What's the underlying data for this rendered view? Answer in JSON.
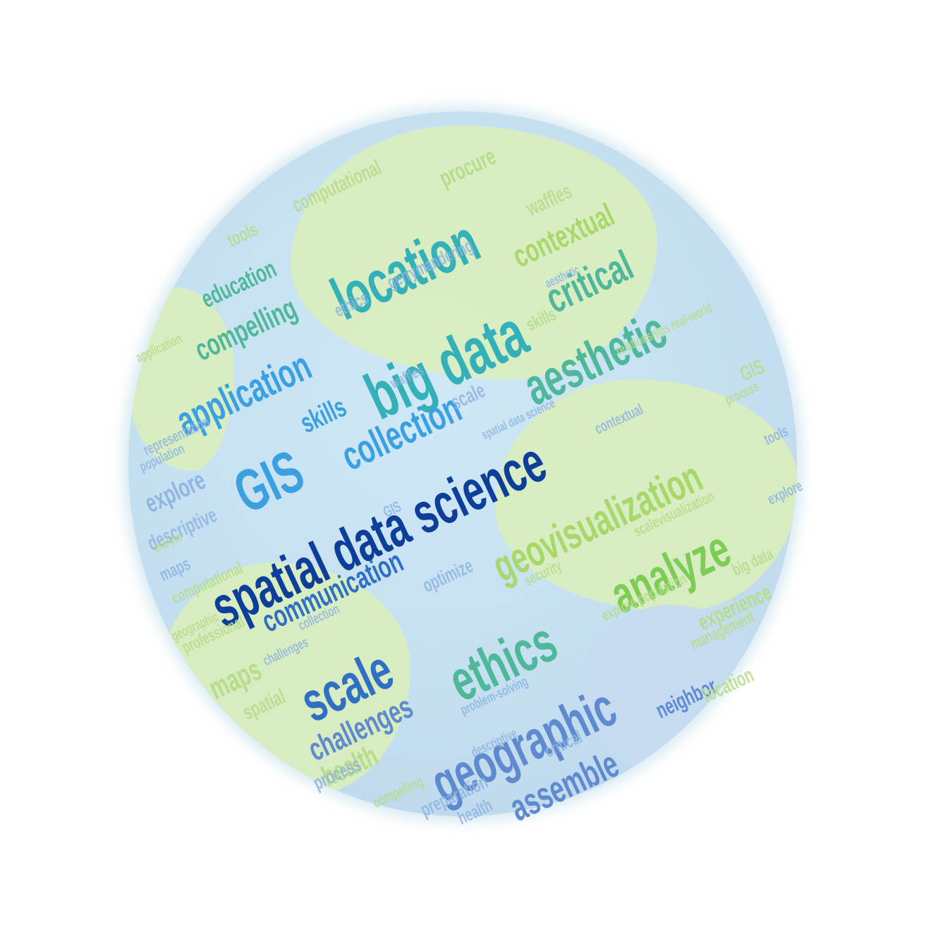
{
  "palette": {
    "navy": "#0d3f9a",
    "blue": "#2f6fc4",
    "sky": "#3aa0e0",
    "teal": "#33b0b8",
    "seagreen": "#4fb89a",
    "green": "#7ccc55",
    "lime": "#a8d86a",
    "pale_green": "#b7dc8a",
    "pale_blue": "#8fb5e0",
    "periwinkle": "#5f8ad0"
  },
  "words": [
    {
      "text": "spatial data science",
      "color": "navy"
    },
    {
      "text": "big data",
      "color": "teal"
    },
    {
      "text": "location",
      "color": "teal"
    },
    {
      "text": "aesthetic",
      "color": "seagreen"
    },
    {
      "text": "critical",
      "color": "seagreen"
    },
    {
      "text": "contextual",
      "color": "lime"
    },
    {
      "text": "GIS",
      "color": "sky"
    },
    {
      "text": "application",
      "color": "sky"
    },
    {
      "text": "collection",
      "color": "sky"
    },
    {
      "text": "skills",
      "color": "sky"
    },
    {
      "text": "geovisualization",
      "color": "lime"
    },
    {
      "text": "analyze",
      "color": "green"
    },
    {
      "text": "ethics",
      "color": "seagreen"
    },
    {
      "text": "scale",
      "color": "blue"
    },
    {
      "text": "geographic",
      "color": "periwinkle"
    },
    {
      "text": "communication",
      "color": "blue"
    },
    {
      "text": "assemble",
      "color": "periwinkle"
    },
    {
      "text": "challenges",
      "color": "periwinkle"
    },
    {
      "text": "health",
      "color": "pale_green"
    },
    {
      "text": "maps",
      "color": "pale_green"
    },
    {
      "text": "compelling",
      "color": "seagreen"
    },
    {
      "text": "education",
      "color": "seagreen"
    },
    {
      "text": "computational",
      "color": "pale_green"
    },
    {
      "text": "procure",
      "color": "pale_green"
    },
    {
      "text": "waffles",
      "color": "pale_green"
    },
    {
      "text": "tools",
      "color": "pale_green"
    },
    {
      "text": "explore",
      "color": "pale_blue"
    },
    {
      "text": "descriptive",
      "color": "pale_blue"
    },
    {
      "text": "experience",
      "color": "pale_green"
    },
    {
      "text": "process",
      "color": "pale_blue"
    },
    {
      "text": "management",
      "color": "pale_green"
    },
    {
      "text": "neighbor",
      "color": "periwinkle"
    },
    {
      "text": "location",
      "color": "pale_green"
    },
    {
      "text": "preparation",
      "color": "pale_blue"
    },
    {
      "text": "spatial",
      "color": "pale_green"
    },
    {
      "text": "security",
      "color": "pale_green"
    },
    {
      "text": "optimize",
      "color": "pale_blue"
    },
    {
      "text": "ethics",
      "color": "pale_blue"
    },
    {
      "text": "gerrymandering",
      "color": "pale_blue"
    },
    {
      "text": "scale",
      "color": "pale_blue"
    },
    {
      "text": "professional",
      "color": "pale_green"
    },
    {
      "text": "explore population",
      "color": "pale_green"
    },
    {
      "text": "representation",
      "color": "pale_blue"
    },
    {
      "text": "big data",
      "color": "pale_green"
    },
    {
      "text": "scalevisualization",
      "color": "pale_green"
    },
    {
      "text": "relationships real-world",
      "color": "pale_green"
    },
    {
      "text": "spatial data science",
      "color": "pale_blue"
    },
    {
      "text": "GIS",
      "color": "pale_green"
    },
    {
      "text": "skills",
      "color": "pale_green"
    },
    {
      "text": "population",
      "color": "pale_blue"
    },
    {
      "text": "problem-solving",
      "color": "pale_blue"
    },
    {
      "text": "application",
      "color": "pale_green"
    },
    {
      "text": "critical",
      "color": "pale_blue"
    },
    {
      "text": "maps",
      "color": "pale_blue"
    },
    {
      "text": "analyze",
      "color": "pale_green"
    },
    {
      "text": "health",
      "color": "pale_blue"
    },
    {
      "text": "descriptive",
      "color": "pale_blue"
    },
    {
      "text": "compelling",
      "color": "pale_green"
    },
    {
      "text": "GIS",
      "color": "pale_blue"
    },
    {
      "text": "contextual",
      "color": "pale_blue"
    },
    {
      "text": "waffles",
      "color": "pale_blue"
    },
    {
      "text": "challenges",
      "color": "pale_blue"
    },
    {
      "text": "geographic",
      "color": "pale_green"
    },
    {
      "text": "process",
      "color": "pale_green"
    },
    {
      "text": "aesthetic",
      "color": "pale_blue"
    },
    {
      "text": "computational",
      "color": "pale_green"
    },
    {
      "text": "collection",
      "color": "pale_blue"
    },
    {
      "text": "tools",
      "color": "pale_blue"
    },
    {
      "text": "explore",
      "color": "pale_blue"
    }
  ]
}
